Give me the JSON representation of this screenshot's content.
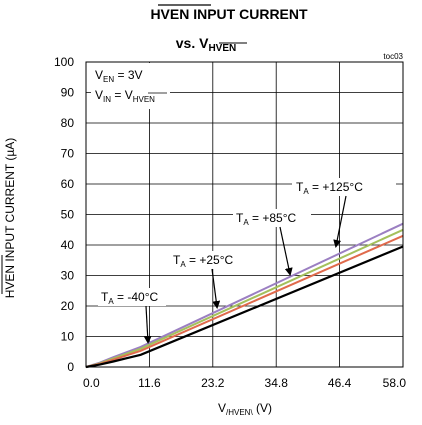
{
  "chart_data": {
    "type": "line",
    "title_line1": "HVEN INPUT CURRENT",
    "title_line2_prefix": "vs. V",
    "title_line2_sub": "HVEN",
    "figure_id": "toc03",
    "xlabel_main": "V",
    "xlabel_sub": "/HVEN\\",
    "xlabel_unit": " (V)",
    "ylabel_overbar": "HVEN",
    "ylabel_rest": " INPUT CURRENT (µA)",
    "xlim": [
      0,
      58.0
    ],
    "ylim": [
      0,
      100
    ],
    "x_ticks": [
      "0.0",
      "11.6",
      "23.2",
      "34.8",
      "46.4",
      "58.0"
    ],
    "y_ticks": [
      "0",
      "10",
      "20",
      "30",
      "40",
      "50",
      "60",
      "70",
      "80",
      "90",
      "100"
    ],
    "grid": true,
    "conditions": [
      {
        "main": "V",
        "sub": "EN",
        "rest": " = 3V"
      },
      {
        "main": "V",
        "sub": "IN",
        "rest": " = V",
        "sub2": "HVEN"
      }
    ],
    "series": [
      {
        "name": "T_A = -40°C",
        "label_main": "T",
        "label_sub": "A",
        "label_rest": " = -40°C",
        "color": "#000000",
        "x": [
          0,
          2.5,
          5,
          10,
          58
        ],
        "y": [
          0,
          0.8,
          1.8,
          4.0,
          39.5
        ]
      },
      {
        "name": "T_A = +25°C",
        "label_main": "T",
        "label_sub": "A",
        "label_rest": " = +25°C",
        "color": "#e06a4c",
        "x": [
          0,
          2.5,
          5,
          10,
          58
        ],
        "y": [
          0,
          1.0,
          2.4,
          5.3,
          43.0
        ]
      },
      {
        "name": "T_A = +85°C",
        "label_main": "T",
        "label_sub": "A",
        "label_rest": " = +85°C",
        "color": "#a4c05c",
        "x": [
          0,
          2.5,
          5,
          10,
          58
        ],
        "y": [
          0,
          1.2,
          2.8,
          6.0,
          45.0
        ]
      },
      {
        "name": "T_A = +125°C",
        "label_main": "T",
        "label_sub": "A",
        "label_rest": " = +125°C",
        "color": "#9b7fc2",
        "x": [
          0,
          2.5,
          5,
          10,
          58
        ],
        "y": [
          0,
          1.4,
          3.2,
          6.6,
          47.0
        ]
      }
    ]
  }
}
